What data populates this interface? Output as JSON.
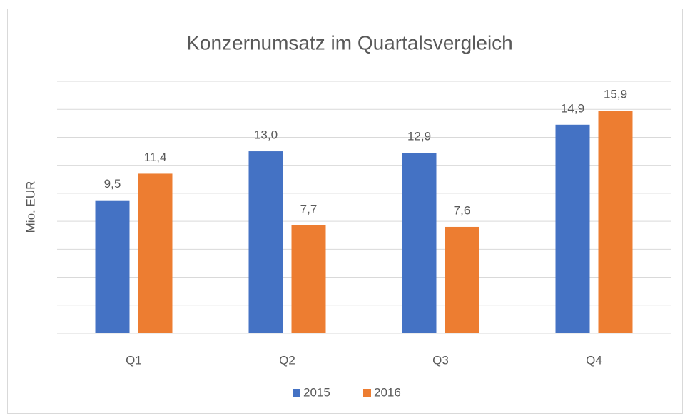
{
  "chart_data": {
    "type": "bar",
    "title": "Konzernumsatz  im Quartalsvergleich",
    "y_label": "Mio. EUR",
    "categories": [
      "Q1",
      "Q2",
      "Q3",
      "Q4"
    ],
    "series": [
      {
        "name": "2015",
        "color": "#4472c4",
        "values": [
          9.5,
          13.0,
          12.9,
          14.9
        ],
        "value_labels": [
          "9,5",
          "13,0",
          "12,9",
          "14,9"
        ]
      },
      {
        "name": "2016",
        "color": "#ed7d31",
        "values": [
          11.4,
          7.7,
          7.6,
          15.9
        ],
        "value_labels": [
          "11,4",
          "7,7",
          "7,6",
          "15,9"
        ]
      }
    ],
    "ylim": [
      0,
      18
    ],
    "yticks": [
      0,
      2,
      4,
      6,
      8,
      10,
      12,
      14,
      16,
      18
    ],
    "grid": true,
    "legend": "bottom"
  }
}
